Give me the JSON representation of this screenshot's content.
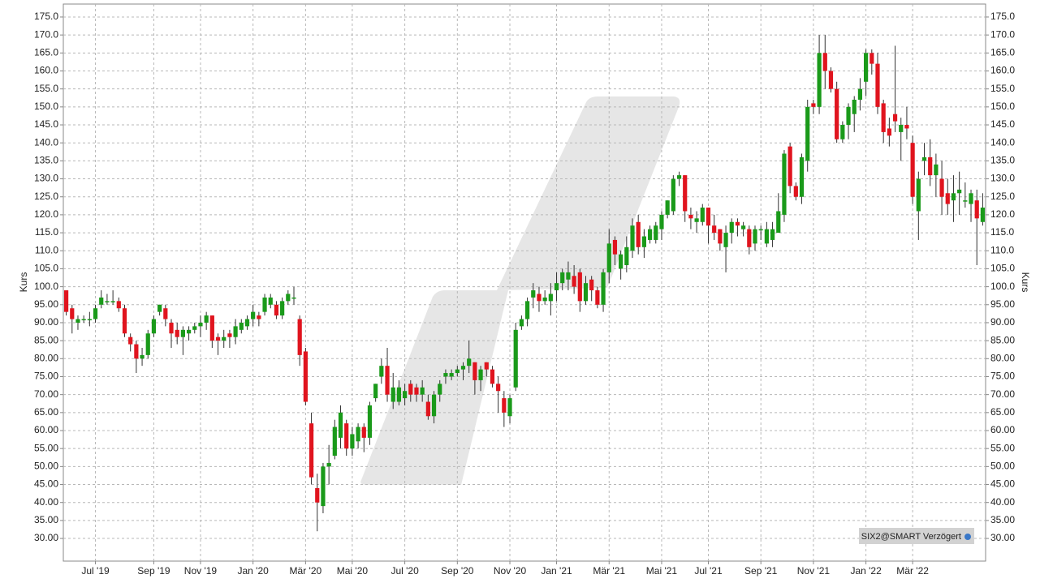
{
  "chart_data": {
    "type": "candlestick",
    "y_label": "Kurs",
    "source": "SIX2@SMART Verzögert",
    "up_color": "#1a9a1a",
    "down_color": "#e0141e",
    "grid": true,
    "ylim": [
      23.7,
      178.6
    ],
    "yticks": [
      {
        "value": 175,
        "label": "175.0"
      },
      {
        "value": 170,
        "label": "170.0"
      },
      {
        "value": 165,
        "label": "165.0"
      },
      {
        "value": 160,
        "label": "160.0"
      },
      {
        "value": 155,
        "label": "155.0"
      },
      {
        "value": 150,
        "label": "150.0"
      },
      {
        "value": 145,
        "label": "145.0"
      },
      {
        "value": 140,
        "label": "140.0"
      },
      {
        "value": 135,
        "label": "135.0"
      },
      {
        "value": 130,
        "label": "130.0"
      },
      {
        "value": 125,
        "label": "125.0"
      },
      {
        "value": 120,
        "label": "120.0"
      },
      {
        "value": 115,
        "label": "115.0"
      },
      {
        "value": 110,
        "label": "110.0"
      },
      {
        "value": 105,
        "label": "105.0"
      },
      {
        "value": 100,
        "label": "100.0"
      },
      {
        "value": 95,
        "label": "95.00"
      },
      {
        "value": 90,
        "label": "90.00"
      },
      {
        "value": 85,
        "label": "85.00"
      },
      {
        "value": 80,
        "label": "80.00"
      },
      {
        "value": 75,
        "label": "75.00"
      },
      {
        "value": 70,
        "label": "70.00"
      },
      {
        "value": 65,
        "label": "65.00"
      },
      {
        "value": 60,
        "label": "60.00"
      },
      {
        "value": 55,
        "label": "55.00"
      },
      {
        "value": 50,
        "label": "50.00"
      },
      {
        "value": 45,
        "label": "45.00"
      },
      {
        "value": 40,
        "label": "40.00"
      },
      {
        "value": 35,
        "label": "35.00"
      },
      {
        "value": 30,
        "label": "30.00"
      }
    ],
    "categories": [
      null,
      null,
      null,
      null,
      null,
      "Jul '19",
      null,
      null,
      null,
      null,
      null,
      null,
      null,
      null,
      null,
      "Sep '19",
      null,
      null,
      null,
      null,
      null,
      null,
      null,
      "Nov '19",
      null,
      null,
      null,
      null,
      null,
      null,
      null,
      null,
      "Jan '20",
      null,
      null,
      null,
      null,
      null,
      null,
      null,
      null,
      "Mär '20",
      null,
      null,
      null,
      null,
      null,
      null,
      null,
      "Mai '20",
      null,
      null,
      null,
      null,
      null,
      null,
      null,
      null,
      "Jul '20",
      null,
      null,
      null,
      null,
      null,
      null,
      null,
      null,
      "Sep '20",
      null,
      null,
      null,
      null,
      null,
      null,
      null,
      null,
      "Nov '20",
      null,
      null,
      null,
      null,
      null,
      null,
      null,
      "Jan '21",
      null,
      null,
      null,
      null,
      null,
      null,
      null,
      null,
      "Mär '21",
      null,
      null,
      null,
      null,
      null,
      null,
      null,
      null,
      "Mai '21",
      null,
      null,
      null,
      null,
      null,
      null,
      null,
      "Jul '21",
      null,
      null,
      null,
      null,
      null,
      null,
      null,
      null,
      "Sep '21",
      null,
      null,
      null,
      null,
      null,
      null,
      null,
      null,
      "Nov '21",
      null,
      null,
      null,
      null,
      null,
      null,
      null,
      null,
      "Jan '22",
      null,
      null,
      null,
      null,
      null,
      null,
      null,
      "Mär '22",
      null,
      null,
      null,
      null,
      null,
      null,
      null,
      null,
      null,
      null,
      null,
      null
    ],
    "open": [
      99,
      94,
      90,
      91,
      91,
      91,
      95,
      96,
      96,
      96,
      94,
      86,
      84,
      80,
      81,
      87,
      93,
      94,
      90,
      88,
      86,
      87,
      88,
      89,
      90,
      92,
      86,
      85,
      87,
      86,
      88,
      89,
      91,
      92,
      93,
      95,
      95,
      92,
      96,
      97,
      91,
      82,
      62,
      44,
      39,
      50,
      53,
      58,
      62,
      55,
      57,
      61,
      58,
      69,
      75,
      78,
      68,
      68,
      69,
      73,
      72,
      70,
      68,
      64,
      70,
      75,
      75,
      76,
      77,
      78,
      79,
      74,
      79,
      77,
      73,
      69,
      64,
      72,
      89,
      91,
      97,
      98,
      96,
      96,
      99,
      101,
      102,
      103,
      104,
      96,
      102,
      99,
      95,
      104,
      113,
      105,
      106,
      110,
      118,
      111,
      113,
      113,
      116,
      120,
      121,
      130,
      131,
      120,
      118,
      118,
      122,
      117,
      116,
      111,
      115,
      118,
      116,
      116,
      112,
      116,
      112,
      113,
      115,
      120,
      139,
      128,
      125,
      135,
      151,
      150,
      165,
      160,
      155,
      141,
      145,
      148,
      152,
      157,
      165,
      162,
      151,
      144,
      148,
      143,
      145,
      140,
      121,
      135,
      136,
      131,
      130,
      126,
      124,
      126,
      124,
      123,
      124,
      118
    ],
    "high": [
      99,
      95,
      92,
      92,
      93,
      95,
      99,
      98,
      99,
      97,
      95,
      87,
      85,
      83,
      88,
      92,
      95,
      95,
      91,
      90,
      89,
      89,
      90,
      92,
      93,
      92,
      87,
      88,
      88,
      91,
      91,
      92,
      95,
      93,
      98,
      98,
      96,
      97,
      99,
      100,
      92,
      83,
      65,
      48,
      51,
      56,
      63,
      67,
      63,
      61,
      62,
      62,
      68,
      73,
      80,
      83,
      76,
      74,
      73,
      74,
      73,
      74,
      70,
      71,
      74,
      77,
      77,
      78,
      79,
      85,
      79,
      78,
      79,
      78,
      75,
      71,
      70,
      90,
      92,
      97,
      101,
      100,
      99,
      101,
      104,
      105,
      107,
      106,
      105,
      103,
      103,
      100,
      105,
      116,
      114,
      110,
      114,
      119,
      120,
      116,
      117,
      118,
      121,
      124,
      131,
      132,
      131,
      122,
      121,
      123,
      122,
      120,
      116,
      117,
      119,
      119,
      118,
      117,
      117,
      117,
      118,
      118,
      126,
      138,
      140,
      129,
      137,
      152,
      152,
      170,
      170,
      161,
      157,
      146,
      151,
      153,
      158,
      166,
      166,
      165,
      152,
      147,
      167,
      147,
      150,
      142,
      132,
      140,
      141,
      137,
      135,
      130,
      131,
      132,
      129,
      127,
      127,
      126
    ],
    "low": [
      92,
      87,
      88,
      90,
      89,
      90,
      94,
      95,
      95,
      93,
      86,
      82,
      76,
      78,
      80,
      86,
      92,
      89,
      83,
      84,
      81,
      85,
      87,
      86,
      88,
      83,
      81,
      83,
      83,
      84,
      87,
      88,
      89,
      89,
      92,
      94,
      91,
      91,
      95,
      95,
      78,
      67,
      45,
      32,
      37,
      45,
      52,
      55,
      53,
      53,
      55,
      54,
      56,
      68,
      73,
      68,
      66,
      67,
      67,
      68,
      68,
      68,
      63,
      62,
      68,
      73,
      74,
      75,
      74,
      76,
      70,
      71,
      75,
      72,
      65,
      61,
      62,
      71,
      88,
      89,
      94,
      93,
      95,
      92,
      96,
      99,
      99,
      98,
      93,
      95,
      96,
      94,
      93,
      101,
      106,
      102,
      104,
      108,
      109,
      108,
      112,
      112,
      113,
      119,
      120,
      128,
      118,
      116,
      115,
      117,
      112,
      113,
      110,
      104,
      112,
      114,
      114,
      109,
      110,
      113,
      111,
      111,
      115,
      118,
      126,
      124,
      123,
      132,
      148,
      148,
      155,
      154,
      140,
      140,
      141,
      143,
      149,
      153,
      159,
      148,
      140,
      139,
      143,
      135,
      141,
      123,
      113,
      131,
      128,
      125,
      120,
      120,
      118,
      120,
      122,
      118,
      106,
      117
    ],
    "close": [
      93,
      91,
      91,
      91,
      91,
      94,
      97,
      96,
      96,
      94,
      87,
      84,
      80,
      81,
      87,
      91,
      95,
      91,
      87,
      86,
      88,
      88,
      89,
      90,
      92,
      85,
      85,
      86,
      86,
      89,
      90,
      91,
      93,
      91,
      97,
      97,
      92,
      96,
      98,
      97,
      81,
      68,
      47,
      40,
      50,
      51,
      61,
      65,
      55,
      59,
      61,
      58,
      67,
      73,
      78,
      70,
      72,
      72,
      71,
      70,
      70,
      72,
      64,
      70,
      73,
      76,
      76,
      77,
      78,
      80,
      74,
      77,
      77,
      73,
      71,
      65,
      69,
      88,
      91,
      96,
      99,
      96,
      97,
      98,
      101,
      104,
      104,
      100,
      96,
      101,
      99,
      95,
      104,
      112,
      109,
      109,
      111,
      117,
      111,
      114,
      116,
      117,
      120,
      124,
      130,
      131,
      121,
      119,
      119,
      122,
      117,
      115,
      112,
      115,
      118,
      117,
      117,
      111,
      116,
      116,
      116,
      116,
      121,
      137,
      128,
      125,
      136,
      150,
      150,
      165,
      160,
      155,
      141,
      145,
      150,
      152,
      155,
      165,
      162,
      150,
      143,
      142,
      146,
      145,
      144,
      125,
      130,
      136,
      131,
      134,
      125,
      123,
      126,
      127,
      124,
      126,
      119,
      122
    ]
  }
}
